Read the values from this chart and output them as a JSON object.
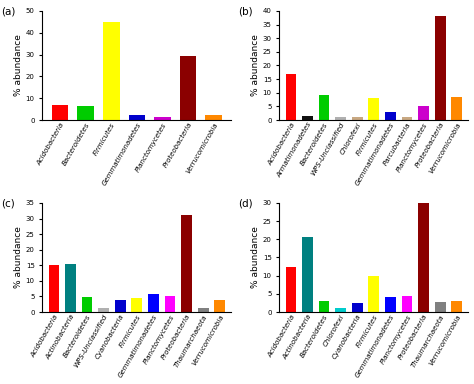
{
  "panels": [
    {
      "label": "(a)",
      "categories": [
        "Acidobacteria",
        "Bacteroidetes",
        "Firmicutes",
        "Gemmatimonadetes",
        "Planctomycetes",
        "Proteobacteria",
        "Verrucomicrobia"
      ],
      "values": [
        7,
        6.5,
        45,
        2.5,
        1.2,
        29.5,
        2.5
      ],
      "colors": [
        "#ff0000",
        "#00cc00",
        "#ffff00",
        "#0000cc",
        "#cc00cc",
        "#8b0000",
        "#ff8800"
      ],
      "ylim": [
        0,
        50
      ],
      "yticks": [
        0,
        10,
        20,
        30,
        40,
        50
      ]
    },
    {
      "label": "(b)",
      "categories": [
        "Acidobacteria",
        "Armatimonadetes",
        "Bacteroidetes",
        "WPS-Unclassified",
        "Chlorofexi",
        "Firmicutes",
        "Gemmatimonadetes",
        "Parcubacteria",
        "Planctomycetes",
        "Proteobacteria",
        "Verrucomicrobia"
      ],
      "values": [
        17,
        1.5,
        9,
        1.2,
        1.2,
        8,
        3,
        1.2,
        5,
        38,
        8.5
      ],
      "colors": [
        "#ff0000",
        "#111111",
        "#00cc00",
        "#b0b0b0",
        "#c8a882",
        "#ffff00",
        "#0000cc",
        "#c8a882",
        "#cc00cc",
        "#8b0000",
        "#ff8800"
      ],
      "ylim": [
        0,
        40
      ],
      "yticks": [
        0,
        5,
        10,
        15,
        20,
        25,
        30,
        35,
        40
      ]
    },
    {
      "label": "(c)",
      "categories": [
        "Acidobacteria",
        "Actinobacteria",
        "Bacteroidetes",
        "WPS-Unclassified",
        "Cyanobacteria",
        "Firmicutes",
        "Gemmatimonadetes",
        "Planctomycetes",
        "Proteobacteria",
        "Thaumarchaeota",
        "Verrucomicrobia"
      ],
      "values": [
        15,
        15.5,
        4.8,
        1.2,
        4,
        4.5,
        5.7,
        5.2,
        31,
        1.2,
        3.8
      ],
      "colors": [
        "#ff0000",
        "#008080",
        "#00cc00",
        "#b0b0b0",
        "#0000cc",
        "#ffff00",
        "#0000ff",
        "#ff00ff",
        "#8b0000",
        "#808080",
        "#ff8800"
      ],
      "ylim": [
        0,
        35
      ],
      "yticks": [
        0,
        5,
        10,
        15,
        20,
        25,
        30,
        35
      ]
    },
    {
      "label": "(d)",
      "categories": [
        "Acidobacteria",
        "Actinobacteria",
        "Bacteroidetes",
        "Chlorofexi",
        "Cyanobacteria",
        "Firmicutes",
        "Gemmatimonadetes",
        "Planctomycetes",
        "Proteobacteria",
        "Thaumarchaeota",
        "Verrucomicrobia"
      ],
      "values": [
        12.5,
        20.5,
        3,
        1.2,
        2.5,
        10,
        4,
        4.5,
        30,
        2.8,
        3
      ],
      "colors": [
        "#ff0000",
        "#008080",
        "#00cc00",
        "#00cccc",
        "#0000cc",
        "#ffff00",
        "#0000ff",
        "#ff00ff",
        "#8b0000",
        "#808080",
        "#ff8800"
      ],
      "ylim": [
        0,
        30
      ],
      "yticks": [
        0,
        5,
        10,
        15,
        20,
        25,
        30
      ]
    }
  ],
  "ylabel": "% abundance",
  "tick_fontsize": 5.0,
  "label_fontsize": 6.5,
  "panel_label_fontsize": 7.5
}
